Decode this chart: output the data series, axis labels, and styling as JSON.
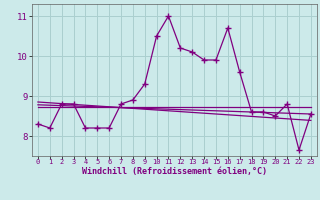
{
  "x": [
    0,
    1,
    2,
    3,
    4,
    5,
    6,
    7,
    8,
    9,
    10,
    11,
    12,
    13,
    14,
    15,
    16,
    17,
    18,
    19,
    20,
    21,
    22,
    23
  ],
  "y_main": [
    8.3,
    8.2,
    8.8,
    8.8,
    8.2,
    8.2,
    8.2,
    8.8,
    8.9,
    9.3,
    10.5,
    11.0,
    10.2,
    10.1,
    9.9,
    9.9,
    10.7,
    9.6,
    8.6,
    8.6,
    8.5,
    8.8,
    7.65,
    8.55
  ],
  "y_trend1": [
    8.85,
    8.83,
    8.81,
    8.79,
    8.77,
    8.75,
    8.73,
    8.71,
    8.69,
    8.67,
    8.65,
    8.63,
    8.61,
    8.59,
    8.57,
    8.55,
    8.53,
    8.51,
    8.49,
    8.47,
    8.45,
    8.43,
    8.41,
    8.39
  ],
  "y_trend2": [
    8.78,
    8.77,
    8.76,
    8.75,
    8.74,
    8.73,
    8.72,
    8.71,
    8.7,
    8.69,
    8.68,
    8.67,
    8.66,
    8.65,
    8.64,
    8.63,
    8.62,
    8.61,
    8.6,
    8.59,
    8.58,
    8.57,
    8.56,
    8.55
  ],
  "y_trend3": [
    8.72,
    8.72,
    8.72,
    8.72,
    8.72,
    8.72,
    8.72,
    8.72,
    8.72,
    8.72,
    8.72,
    8.72,
    8.72,
    8.72,
    8.72,
    8.72,
    8.72,
    8.72,
    8.72,
    8.72,
    8.72,
    8.72,
    8.72,
    8.72
  ],
  "color_main": "#800080",
  "color_trend": "#800080",
  "bg_color": "#cceaea",
  "grid_color": "#aacfcf",
  "xlabel": "Windchill (Refroidissement éolien,°C)",
  "ylim": [
    7.5,
    11.3
  ],
  "xlim": [
    -0.5,
    23.5
  ],
  "yticks": [
    8,
    9,
    10,
    11
  ],
  "xticks": [
    0,
    1,
    2,
    3,
    4,
    5,
    6,
    7,
    8,
    9,
    10,
    11,
    12,
    13,
    14,
    15,
    16,
    17,
    18,
    19,
    20,
    21,
    22,
    23
  ]
}
